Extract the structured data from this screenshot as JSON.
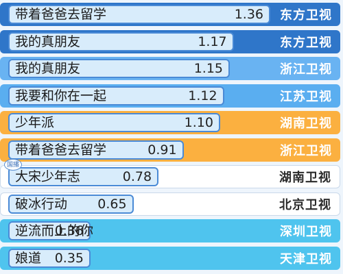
{
  "chart_data": {
    "type": "bar",
    "orientation": "horizontal",
    "title": "",
    "xlabel": "",
    "ylabel": "",
    "xlim": [
      0,
      1.36
    ],
    "grid": false,
    "categories": [
      "带着爸爸去留学",
      "我的真朋友",
      "我的真朋友",
      "我要和你在一起",
      "少年派",
      "带着爸爸去留学",
      "大宋少年志",
      "破冰行动",
      "逆流而上的你",
      "娘道"
    ],
    "values": [
      1.36,
      1.17,
      1.15,
      1.12,
      1.1,
      0.91,
      0.78,
      0.65,
      0.36,
      0.35
    ],
    "value_labels": [
      "1.36",
      "1.17",
      "1.15",
      "1.12",
      "1.10",
      "0.91",
      "0.78",
      "0.65",
      "0.36",
      "0.35"
    ],
    "channels": [
      "东方卫视",
      "东方卫视",
      "浙江卫视",
      "江苏卫视",
      "湖南卫视",
      "浙江卫视",
      "湖南卫视",
      "北京卫视",
      "深圳卫视",
      "天津卫视"
    ],
    "channel_colors": [
      "#2f76c9",
      "#2f76c9",
      "#69b3f2",
      "#5aaef0",
      "#fbb040",
      "#fbb040",
      "#ffffff",
      "#ffffff",
      "#4fc4ee",
      "#4fc4ee"
    ],
    "channel_text_colors": [
      "#ffffff",
      "#ffffff",
      "#ffffff",
      "#ffffff",
      "#ffffff",
      "#ffffff",
      "#2b2b2b",
      "#2b2b2b",
      "#ffffff",
      "#ffffff"
    ],
    "badge": {
      "row": 6,
      "text": "国播"
    }
  }
}
